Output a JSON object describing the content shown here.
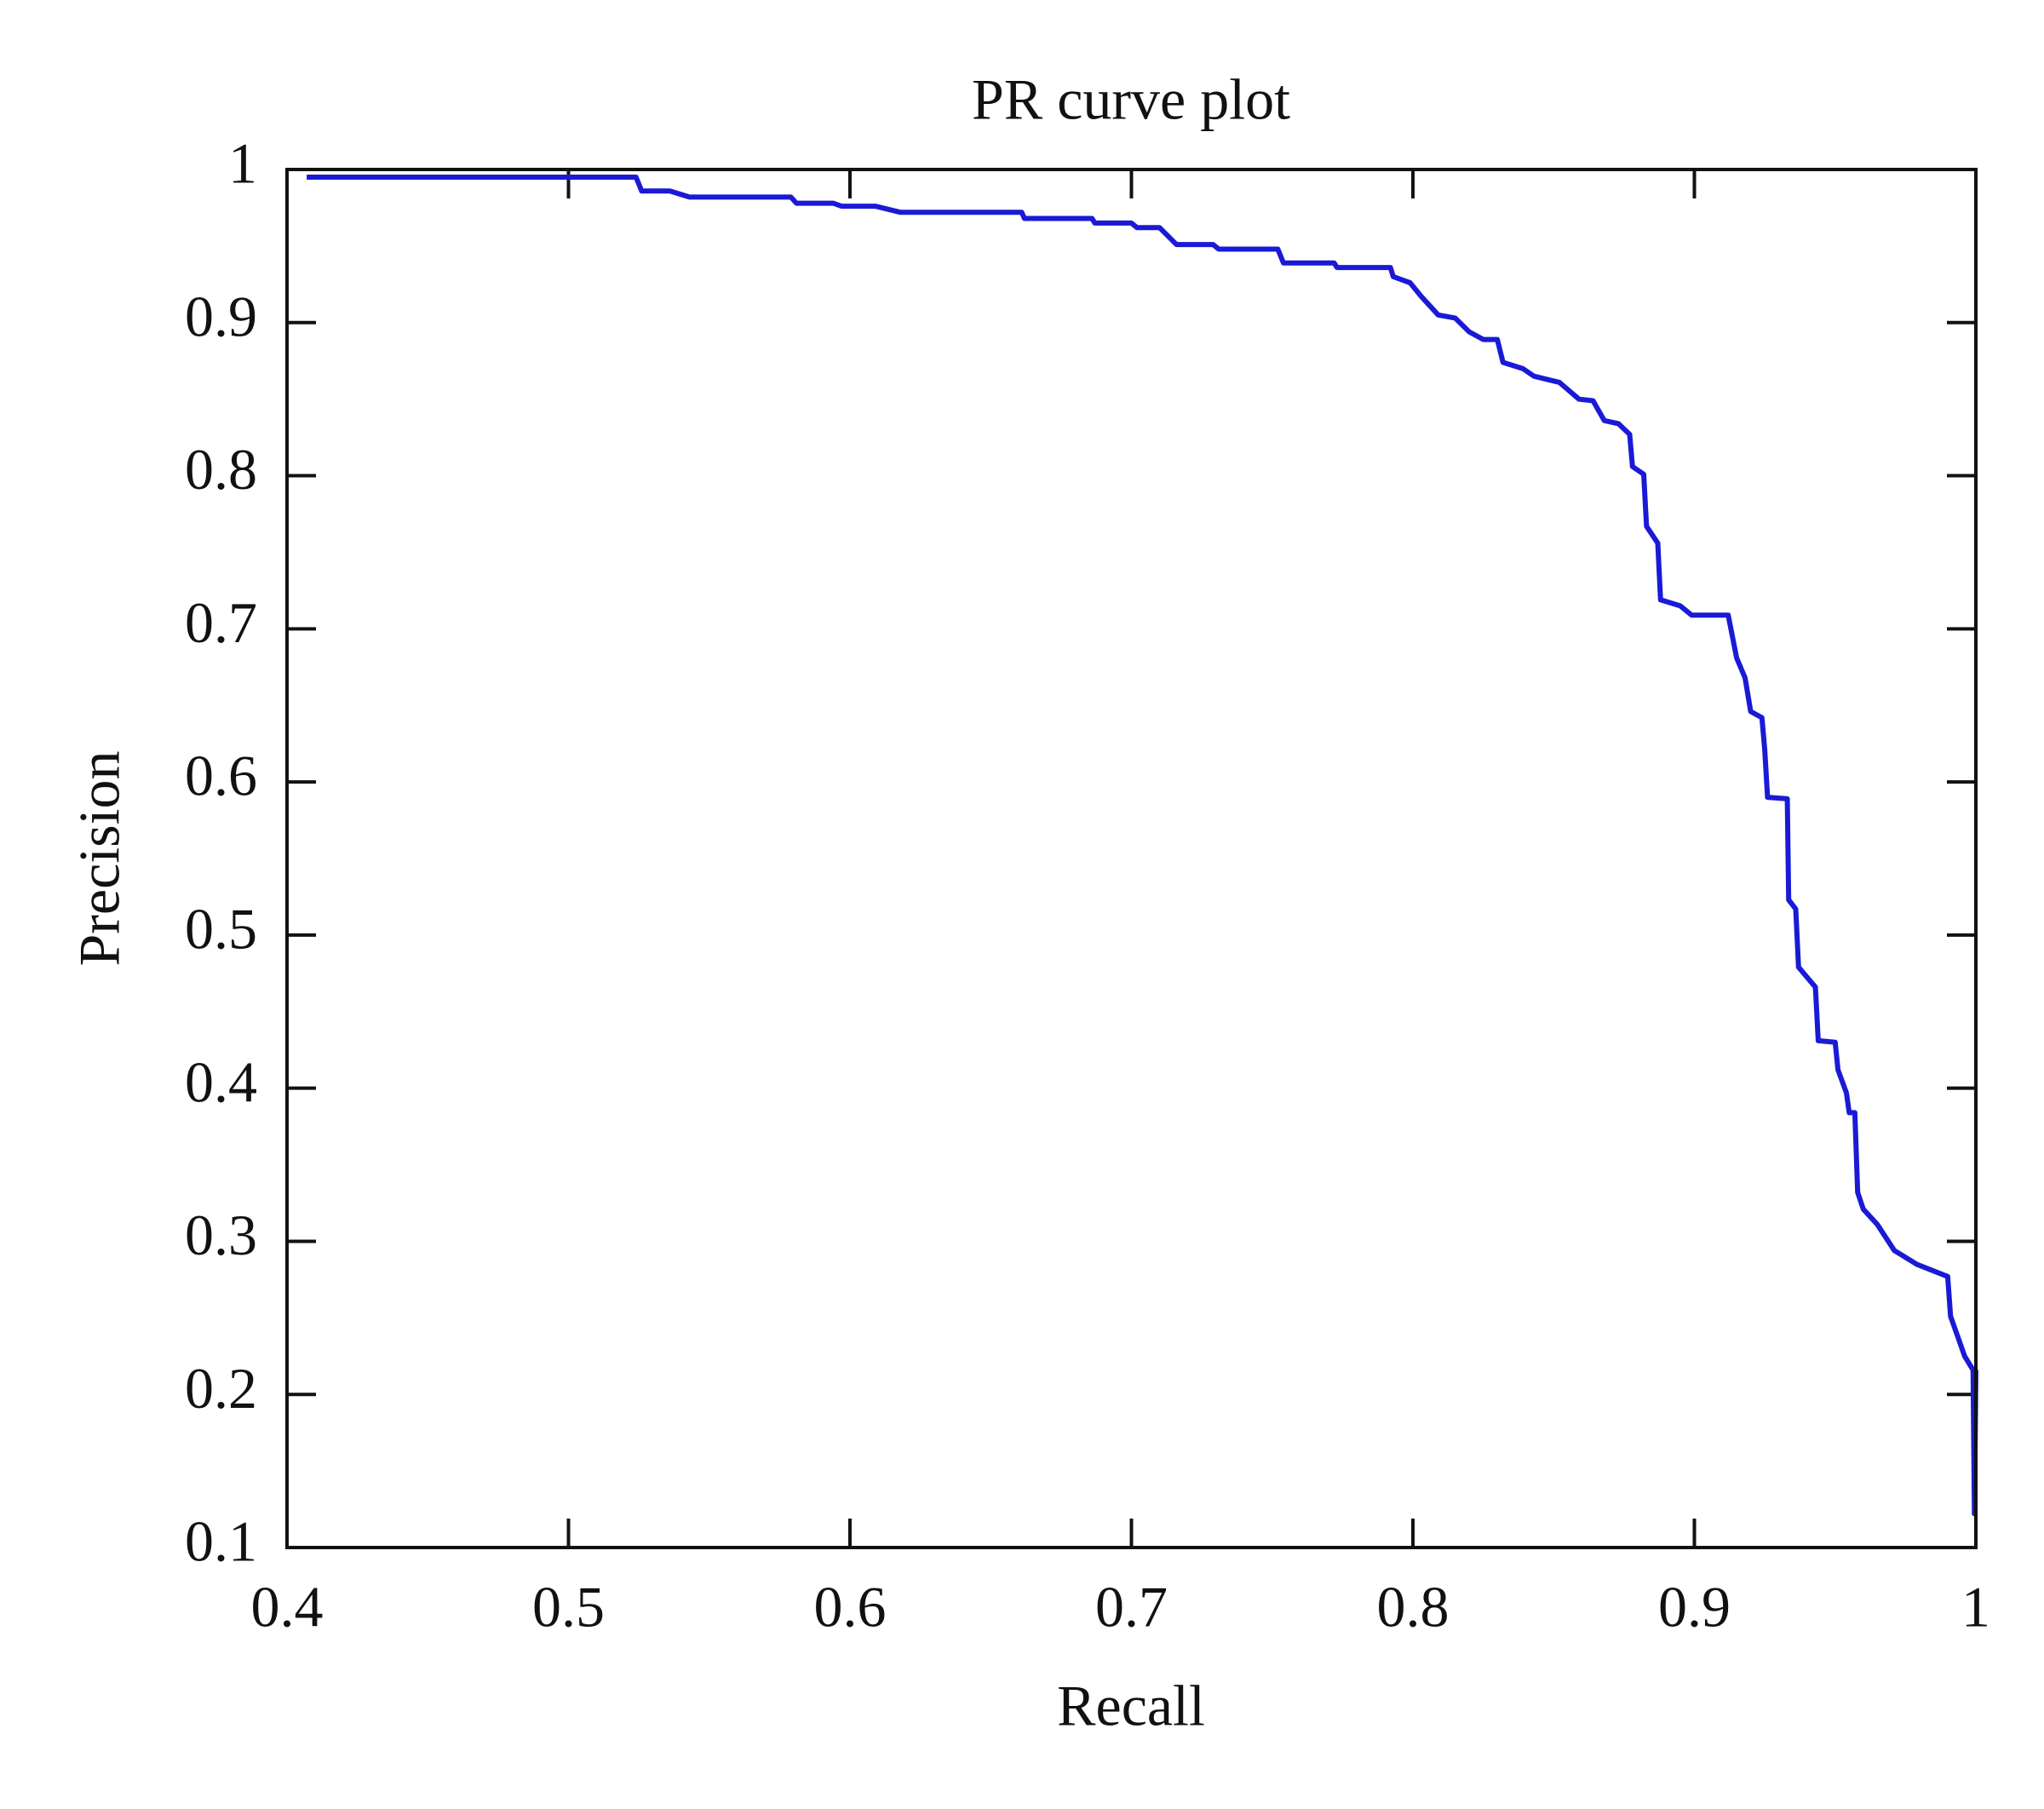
{
  "chart_data": {
    "type": "line",
    "title": "PR curve plot",
    "xlabel": "Recall",
    "ylabel": "Precision",
    "color": "#1a1ad6",
    "xlim": [
      0.4,
      1
    ],
    "xticks": [
      0.4,
      0.5,
      0.6,
      0.7,
      0.8,
      0.9,
      1
    ],
    "ylim": [
      0.1,
      1
    ],
    "yticks": [
      0.1,
      0.2,
      0.3,
      0.4,
      0.5,
      0.6,
      0.7,
      0.8,
      0.9,
      1
    ],
    "grid": false,
    "x": [
      0.407,
      0.524,
      0.526,
      0.536,
      0.543,
      0.579,
      0.581,
      0.594,
      0.597,
      0.609,
      0.618,
      0.661,
      0.662,
      0.686,
      0.687,
      0.7,
      0.702,
      0.71,
      0.716,
      0.729,
      0.731,
      0.752,
      0.754,
      0.772,
      0.773,
      0.792,
      0.793,
      0.799,
      0.803,
      0.809,
      0.815,
      0.82,
      0.825,
      0.83,
      0.832,
      0.839,
      0.843,
      0.852,
      0.859,
      0.864,
      0.868,
      0.873,
      0.877,
      0.878,
      0.882,
      0.883,
      0.887,
      0.888,
      0.895,
      0.899,
      0.912,
      0.915,
      0.918,
      0.92,
      0.924,
      0.925,
      0.926,
      0.933,
      0.9335,
      0.936,
      0.937,
      0.943,
      0.944,
      0.95,
      0.951,
      0.954,
      0.955,
      0.957,
      0.958,
      0.96,
      0.965,
      0.971,
      0.979,
      0.99,
      0.991,
      0.996,
      0.999,
      0.9995,
      1.0
    ],
    "values": [
      0.995,
      0.995,
      0.986,
      0.986,
      0.982,
      0.982,
      0.978,
      0.978,
      0.976,
      0.976,
      0.972,
      0.972,
      0.968,
      0.968,
      0.965,
      0.965,
      0.962,
      0.962,
      0.951,
      0.951,
      0.948,
      0.948,
      0.939,
      0.939,
      0.936,
      0.936,
      0.93,
      0.926,
      0.917,
      0.905,
      0.903,
      0.894,
      0.889,
      0.889,
      0.874,
      0.87,
      0.865,
      0.861,
      0.85,
      0.849,
      0.836,
      0.834,
      0.827,
      0.806,
      0.801,
      0.767,
      0.756,
      0.719,
      0.715,
      0.709,
      0.709,
      0.681,
      0.668,
      0.646,
      0.642,
      0.621,
      0.59,
      0.589,
      0.523,
      0.517,
      0.479,
      0.466,
      0.431,
      0.43,
      0.412,
      0.397,
      0.384,
      0.384,
      0.332,
      0.321,
      0.311,
      0.294,
      0.285,
      0.277,
      0.251,
      0.225,
      0.216,
      0.122,
      0.216
    ]
  }
}
